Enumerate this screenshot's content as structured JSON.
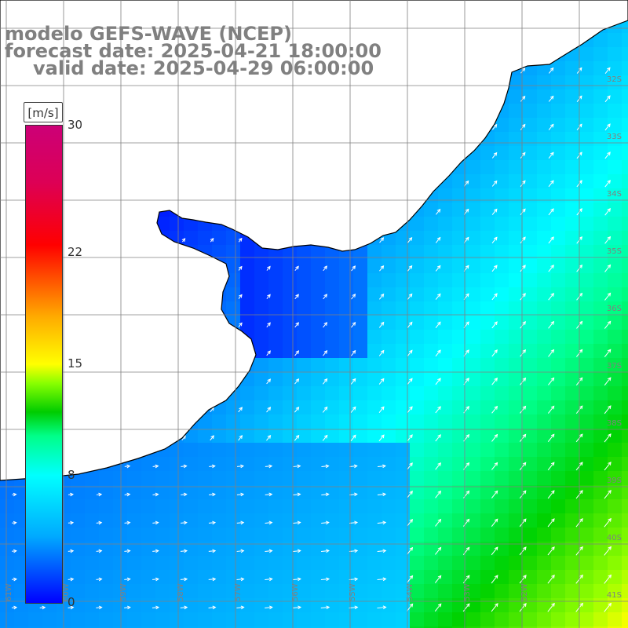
{
  "title": {
    "model": "modelo GEFS-WAVE (NCEP)",
    "forecast": "forecast date: 2025-04-21 18:00:00",
    "valid": "valid date: 2025-04-29 06:00:00"
  },
  "colorbar": {
    "unit": "[m/s]",
    "ticks": [
      {
        "label": "30",
        "value": 30
      },
      {
        "label": "22",
        "value": 22
      },
      {
        "label": "15",
        "value": 15
      },
      {
        "label": "8",
        "value": 8
      },
      {
        "label": "0",
        "value": 0
      }
    ],
    "range": [
      0,
      30
    ]
  },
  "latitude_labels": [
    "32S",
    "33S",
    "34S",
    "35S",
    "36S",
    "37S",
    "38S",
    "39S",
    "40S",
    "41S"
  ],
  "longitude_labels": [
    "61W",
    "60W",
    "59W",
    "58W",
    "57W",
    "56W",
    "55W",
    "54W",
    "53W",
    "52W"
  ],
  "colors": {
    "land": "#ffffff",
    "coastline": "#000000",
    "grid": "#808080",
    "arrows": "#ffffff",
    "text": "#808080"
  }
}
